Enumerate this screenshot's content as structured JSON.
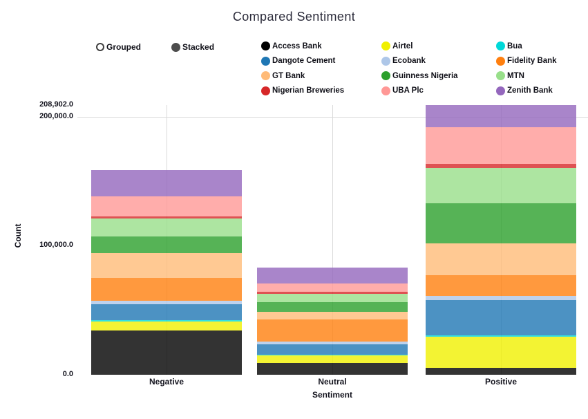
{
  "title": "Compared Sentiment",
  "controls": {
    "grouped_label": "Grouped",
    "stacked_label": "Stacked",
    "selected": "Stacked",
    "radio_fill_color": "#4d4d4d"
  },
  "legend": {
    "items": [
      {
        "label": "Access Bank",
        "color": "#000000"
      },
      {
        "label": "Airtel",
        "color": "#f0f000"
      },
      {
        "label": "Bua",
        "color": "#00d8d8"
      },
      {
        "label": "Dangote Cement",
        "color": "#1f77b4"
      },
      {
        "label": "Ecobank",
        "color": "#aec7e8"
      },
      {
        "label": "Fidelity Bank",
        "color": "#ff7f0e"
      },
      {
        "label": "GT Bank",
        "color": "#ffbb78"
      },
      {
        "label": "Guinness Nigeria",
        "color": "#2ca02c"
      },
      {
        "label": "MTN",
        "color": "#98df8a"
      },
      {
        "label": "Nigerian Breweries",
        "color": "#d62728"
      },
      {
        "label": "UBA Plc",
        "color": "#ff9896"
      },
      {
        "label": "Zenith Bank",
        "color": "#9467bd"
      }
    ]
  },
  "chart_data": {
    "type": "bar",
    "stacked": true,
    "title": "Compared Sentiment",
    "xlabel": "Sentiment",
    "ylabel": "Count",
    "categories": [
      "Negative",
      "Neutral",
      "Positive"
    ],
    "series": [
      {
        "name": "Access Bank",
        "color": "#000000",
        "values": [
          34200,
          9000,
          5000
        ]
      },
      {
        "name": "Airtel",
        "color": "#f0f000",
        "values": [
          6800,
          5800,
          24000
        ]
      },
      {
        "name": "Bua",
        "color": "#00d8d8",
        "values": [
          1200,
          700,
          1100
        ]
      },
      {
        "name": "Dangote Cement",
        "color": "#1f77b4",
        "values": [
          12300,
          7700,
          27500
        ]
      },
      {
        "name": "Ecobank",
        "color": "#aec7e8",
        "values": [
          2500,
          2300,
          3500
        ]
      },
      {
        "name": "Fidelity Bank",
        "color": "#ff7f0e",
        "values": [
          17900,
          17000,
          15800
        ]
      },
      {
        "name": "GT Bank",
        "color": "#ffbb78",
        "values": [
          19100,
          6300,
          25000
        ]
      },
      {
        "name": "Guinness Nigeria",
        "color": "#2ca02c",
        "values": [
          13000,
          7100,
          30800
        ]
      },
      {
        "name": "MTN",
        "color": "#98df8a",
        "values": [
          13900,
          6600,
          27300
        ]
      },
      {
        "name": "Nigerian Breweries",
        "color": "#d62728",
        "values": [
          1600,
          1400,
          3500
        ]
      },
      {
        "name": "UBA Plc",
        "color": "#ff9896",
        "values": [
          15800,
          6700,
          28100
        ]
      },
      {
        "name": "Zenith Bank",
        "color": "#9467bd",
        "values": [
          20000,
          12200,
          17302
        ]
      }
    ],
    "ylim": [
      0,
      208902
    ],
    "yticks": [
      {
        "value": 0,
        "label": "0.0"
      },
      {
        "value": 100000,
        "label": "100,000.0"
      },
      {
        "value": 200000,
        "label": "200,000.0"
      },
      {
        "value": 208902,
        "label": "208,902.0"
      }
    ],
    "grid_y_values": [
      200000
    ],
    "category_gridlines": true,
    "bar_opacity": 0.8,
    "legend_position": "top"
  }
}
